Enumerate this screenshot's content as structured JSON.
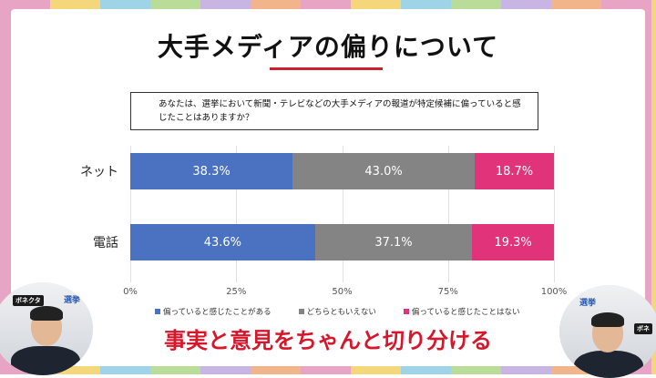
{
  "title": "大手メディアの偏りについて",
  "question": "あなたは、選挙において新聞・テレビなどの大手メディアの報道が特定候補に偏っていると感じたことはありますか？",
  "chart_data": {
    "type": "bar",
    "orientation": "horizontal-stacked-100",
    "categories": [
      "ネット",
      "電話"
    ],
    "series": [
      {
        "name": "偏っていると感じたことがある",
        "color": "#4a72c0",
        "values": [
          38.3,
          43.6
        ],
        "labels": [
          "38.3%",
          "43.6%"
        ]
      },
      {
        "name": "どちらともいえない",
        "color": "#848484",
        "values": [
          43.0,
          37.1
        ],
        "labels": [
          "43.0%",
          "37.1%"
        ]
      },
      {
        "name": "偏っていると感じたことはない",
        "color": "#e0337a",
        "values": [
          18.7,
          19.3
        ],
        "labels": [
          "18.7%",
          "19.3%"
        ]
      }
    ],
    "xlim": [
      0,
      100
    ],
    "xticks": [
      "0%",
      "25%",
      "50%",
      "75%",
      "100%"
    ],
    "legend": "bottom",
    "grid": true
  },
  "caption": "事実と意見をちゃんと切り分ける",
  "left_cam": {
    "logo": "ボネクタ",
    "sign": "選挙"
  },
  "right_cam": {
    "logo": "ボネ",
    "sign": "選挙"
  }
}
